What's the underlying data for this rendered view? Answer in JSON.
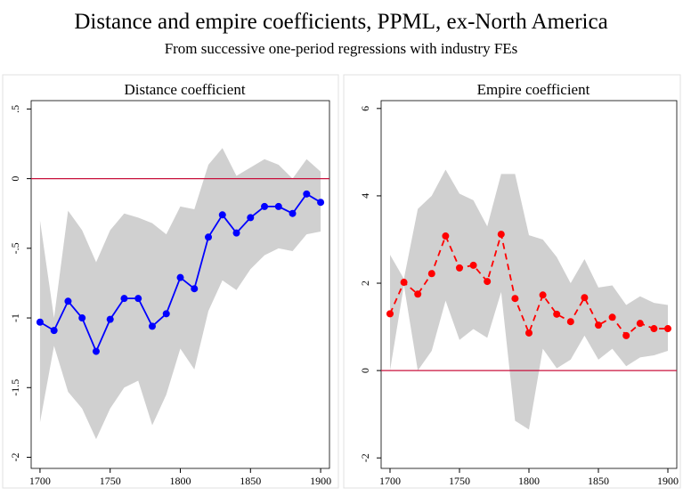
{
  "title": "Distance and empire coefficients, PPML, ex-North America",
  "subtitle": "From successive one-period regressions with industry FEs",
  "chart_data": [
    {
      "type": "line",
      "title": "Distance coefficient",
      "x": [
        1700,
        1710,
        1720,
        1730,
        1740,
        1750,
        1760,
        1770,
        1780,
        1790,
        1800,
        1810,
        1820,
        1830,
        1840,
        1850,
        1860,
        1870,
        1880,
        1890,
        1900
      ],
      "values": [
        -1.03,
        -1.09,
        -0.88,
        -1.0,
        -1.24,
        -1.01,
        -0.86,
        -0.86,
        -1.06,
        -0.97,
        -0.71,
        -0.79,
        -0.42,
        -0.26,
        -0.39,
        -0.28,
        -0.2,
        -0.2,
        -0.25,
        -0.11,
        -0.17
      ],
      "color": "#0000ff",
      "line_style": "solid",
      "band": {
        "upper": [
          -0.3,
          -1.0,
          -0.23,
          -0.37,
          -0.6,
          -0.37,
          -0.25,
          -0.28,
          -0.32,
          -0.4,
          -0.2,
          -0.22,
          0.1,
          0.22,
          0.02,
          0.08,
          0.14,
          0.1,
          0.0,
          0.14,
          0.05
        ],
        "lower": [
          -1.75,
          -1.2,
          -1.53,
          -1.65,
          -1.87,
          -1.65,
          -1.5,
          -1.45,
          -1.77,
          -1.55,
          -1.22,
          -1.37,
          -0.95,
          -0.73,
          -0.8,
          -0.65,
          -0.55,
          -0.5,
          -0.52,
          -0.4,
          -0.38
        ],
        "color": "#d0d0d0"
      },
      "hline": {
        "value": 0,
        "color": "#c8103c"
      },
      "xlim": [
        1693.7,
        1906.3
      ],
      "ylim": [
        -2.08,
        0.56
      ],
      "xticks": [
        1700,
        1750,
        1800,
        1850,
        1900
      ],
      "yticks": [
        {
          "value": 0.5,
          "label": ".5"
        },
        0,
        {
          "value": -0.5,
          "label": "-.5"
        },
        -1,
        -1.5,
        -2
      ]
    },
    {
      "type": "line",
      "title": "Empire coefficient",
      "x": [
        1700,
        1710,
        1720,
        1730,
        1740,
        1750,
        1760,
        1770,
        1780,
        1790,
        1800,
        1810,
        1820,
        1830,
        1840,
        1850,
        1860,
        1870,
        1880,
        1890,
        1900
      ],
      "values": [
        1.3,
        2.02,
        1.75,
        2.22,
        3.08,
        2.35,
        2.41,
        2.04,
        3.12,
        1.65,
        0.86,
        1.73,
        1.29,
        1.12,
        1.67,
        1.04,
        1.22,
        0.8,
        1.08,
        0.96,
        0.96
      ],
      "color": "#ff0000",
      "line_style": "dashed",
      "band": {
        "upper": [
          2.65,
          2.1,
          3.7,
          4.0,
          4.6,
          4.05,
          3.9,
          3.3,
          4.5,
          4.5,
          3.1,
          3.0,
          2.6,
          2.0,
          2.55,
          1.9,
          1.95,
          1.5,
          1.7,
          1.55,
          1.5
        ],
        "lower": [
          0.0,
          1.95,
          0.0,
          0.45,
          1.6,
          0.7,
          0.95,
          0.75,
          1.8,
          -1.15,
          -1.35,
          0.5,
          0.05,
          0.25,
          0.8,
          0.25,
          0.5,
          0.1,
          0.3,
          0.35,
          0.45
        ],
        "color": "#d0d0d0"
      },
      "hline": {
        "value": 0,
        "color": "#c8103c"
      },
      "xlim": [
        1693.6,
        1906.4
      ],
      "ylim": [
        -2.24,
        6.18
      ],
      "xticks": [
        1700,
        1750,
        1800,
        1850,
        1900
      ],
      "yticks": [
        -2,
        0,
        2,
        4,
        6
      ]
    }
  ]
}
